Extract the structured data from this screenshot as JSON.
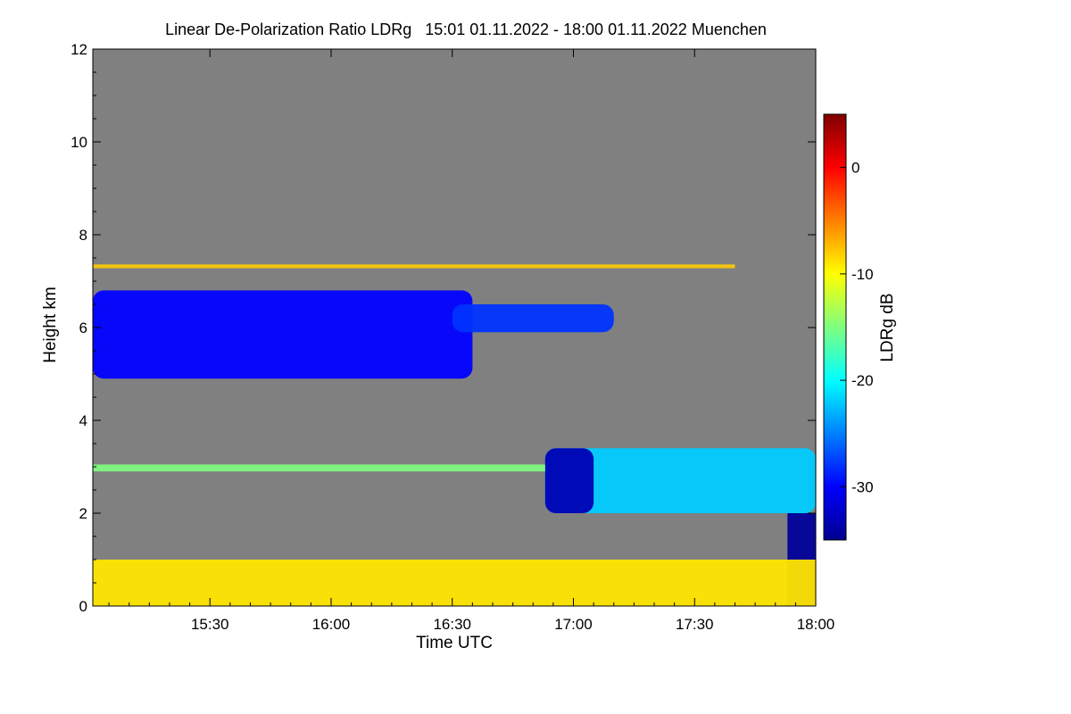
{
  "chart_data": {
    "type": "heatmap",
    "title": "Linear De-Polarization Ratio LDRg   15:01 01.11.2022 - 18:00 01.11.2022 Muenchen",
    "xlabel": "Time UTC",
    "ylabel": "Height km",
    "colorbar_label": "LDRg dB",
    "x_range": [
      "15:01",
      "18:00"
    ],
    "ylim": [
      0,
      12
    ],
    "x_ticks": [
      {
        "label": "15:30",
        "minute": 30
      },
      {
        "label": "16:00",
        "minute": 60
      },
      {
        "label": "16:30",
        "minute": 90
      },
      {
        "label": "17:00",
        "minute": 120
      },
      {
        "label": "17:30",
        "minute": 150
      },
      {
        "label": "18:00",
        "minute": 180
      }
    ],
    "y_ticks": [
      0,
      2,
      4,
      6,
      8,
      10,
      12
    ],
    "colorbar_range": [
      -35,
      5
    ],
    "colorbar_ticks": [
      0,
      -10,
      -20,
      -30
    ],
    "colormap": "jet",
    "background_color": "#808080",
    "features": [
      {
        "name": "upper-cloud-layer",
        "t_start": 0,
        "t_end": 95,
        "h_bottom": 4.9,
        "h_top": 6.8,
        "ldr": -30
      },
      {
        "name": "upper-cloud-fragments",
        "t_start": 90,
        "t_end": 130,
        "h_bottom": 5.9,
        "h_top": 6.5,
        "ldr": -28
      },
      {
        "name": "mid-level-cloud",
        "t_start": 113,
        "t_end": 180,
        "h_bottom": 2.0,
        "h_top": 3.4,
        "ldr": -22
      },
      {
        "name": "mid-level-cloud-base",
        "t_start": 113,
        "t_end": 125,
        "h_bottom": 2.0,
        "h_top": 3.4,
        "ldr": -33
      },
      {
        "name": "precipitation",
        "t_start": 173,
        "t_end": 180,
        "h_bottom": 0,
        "h_top": 2.0,
        "ldr": -34
      },
      {
        "name": "boundary-layer",
        "t_start": 0,
        "t_end": 180,
        "h_bottom": 0,
        "h_top": 1.0,
        "ldr": -9
      },
      {
        "name": "artifact-line-7.3km",
        "t_start": 0,
        "t_end": 160,
        "h_bottom": 7.28,
        "h_top": 7.36,
        "ldr": -8
      },
      {
        "name": "artifact-line-3km",
        "t_start": 0,
        "t_end": 113,
        "h_bottom": 2.9,
        "h_top": 3.05,
        "ldr": -15
      }
    ]
  }
}
